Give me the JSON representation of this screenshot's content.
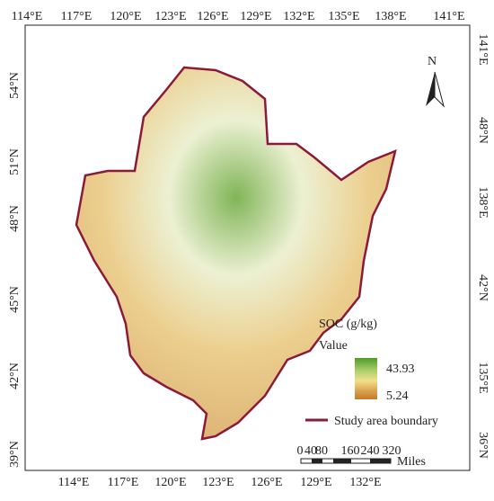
{
  "map": {
    "top_labels": [
      "114°E",
      "117°E",
      "120°E",
      "123°E",
      "126°E",
      "129°E",
      "132°E",
      "135°E",
      "138°E",
      "141°E"
    ],
    "bottom_labels": [
      "114°E",
      "117°E",
      "120°E",
      "123°E",
      "126°E",
      "129°E",
      "132°E"
    ],
    "left_labels": [
      "54°N",
      "51°N",
      "48°N",
      "45°N",
      "42°N",
      "39°N"
    ],
    "right_labels": [
      "141°E",
      "48°N",
      "138°E",
      "42°N",
      "135°E",
      "36°N"
    ],
    "north": "N",
    "legend": {
      "title": "SOC (g/kg)",
      "subtitle": "Value",
      "high": "43.93",
      "low": "5.24",
      "boundary": "Study area boundary"
    },
    "scale_bar": {
      "labels": [
        "0",
        "40",
        "80",
        "160",
        "240",
        "320"
      ],
      "unit": "Miles"
    }
  }
}
